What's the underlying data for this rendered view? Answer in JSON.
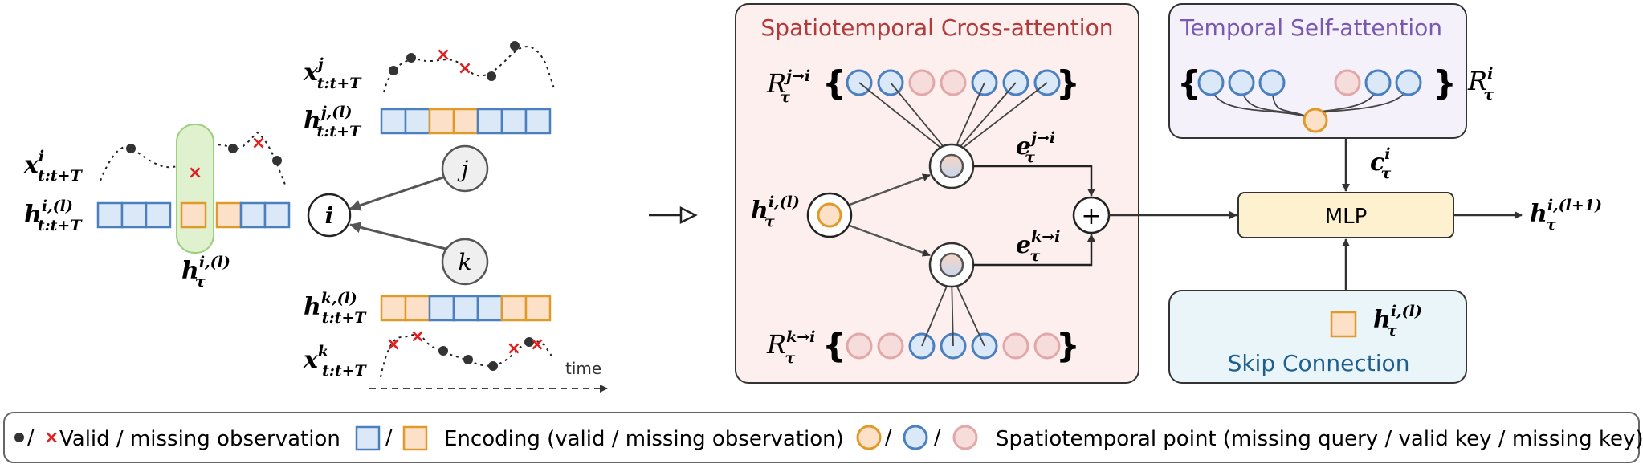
{
  "colors": {
    "valid_fill": "#dbe8f7",
    "valid_stroke": "#4a7fc0",
    "missing_fill": "#fde0c8",
    "missing_stroke": "#e09a2a",
    "key_missing_fill": "#f7dcdc",
    "key_missing_stroke": "#e0a8a8",
    "cross_bg": "#fcefee",
    "self_bg": "#f4f1fb",
    "skip_bg": "#eaf5fa",
    "mlp_bg": "#fdf1cf",
    "cross_title": "#b23a3a",
    "self_title": "#7a58b0",
    "skip_title": "#1f5f8e",
    "missing_x": "#e02020"
  },
  "left": {
    "x_i": "x",
    "x_i_sup": "i",
    "x_i_sub": "t:t+T",
    "h_i": "h",
    "h_i_sup": "i,(l)",
    "h_i_sub": "t:t+T",
    "h_tau": "h",
    "h_tau_sup": "i,(l)",
    "h_tau_sub": "τ",
    "x_j": "x",
    "x_j_sup": "j",
    "x_j_sub": "t:t+T",
    "h_j": "h",
    "h_j_sup": "j,(l)",
    "h_j_sub": "t:t+T",
    "h_k": "h",
    "h_k_sup": "k,(l)",
    "h_k_sub": "t:t+T",
    "x_k": "x",
    "x_k_sup": "k",
    "x_k_sub": "t:t+T",
    "node_i": "i",
    "node_j": "j",
    "node_k": "k",
    "time_label": "time",
    "strip_i": [
      "v",
      "v",
      "v",
      "gap",
      "m",
      "gap",
      "m",
      "v",
      "v"
    ],
    "strip_j": [
      "v",
      "v",
      "m",
      "m",
      "v",
      "v",
      "v"
    ],
    "strip_k": [
      "m",
      "m",
      "v",
      "v",
      "v",
      "m",
      "m"
    ]
  },
  "cross": {
    "title": "Spatiotemporal Cross-attention",
    "R_top": "R",
    "R_top_sup": "j→i",
    "R_top_sub": "τ",
    "R_bot": "R",
    "R_bot_sup": "k→i",
    "R_bot_sub": "τ",
    "h_in": "h",
    "h_in_sup": "i,(l)",
    "h_in_sub": "τ",
    "e_top": "e",
    "e_top_sup": "j→i",
    "e_top_sub": "τ",
    "e_bot": "e",
    "e_bot_sup": "k→i",
    "e_bot_sub": "τ",
    "plus": "+",
    "keys_top": [
      "v",
      "v",
      "m",
      "m",
      "v",
      "v",
      "v"
    ],
    "keys_bot": [
      "m",
      "m",
      "v",
      "v",
      "v",
      "m",
      "m"
    ]
  },
  "self": {
    "title": "Temporal Self-attention",
    "R": "R",
    "R_sup": "i",
    "R_sub": "τ",
    "c": "c",
    "c_sup": "i",
    "c_sub": "τ",
    "keys": [
      "v",
      "v",
      "v",
      "gap",
      "m",
      "v",
      "v"
    ]
  },
  "skip": {
    "title": "Skip Connection",
    "h": "h",
    "h_sup": "i,(l)",
    "h_sub": "τ"
  },
  "mlp": {
    "label": "MLP",
    "out": "h",
    "out_sup": "i,(l+1)",
    "out_sub": "τ"
  },
  "legend": {
    "item1": "Valid / missing observation",
    "item2": "Encoding (valid / missing observation)",
    "item3": "Spatiotemporal point (missing query / valid key / missing key)",
    "sep": "/"
  }
}
